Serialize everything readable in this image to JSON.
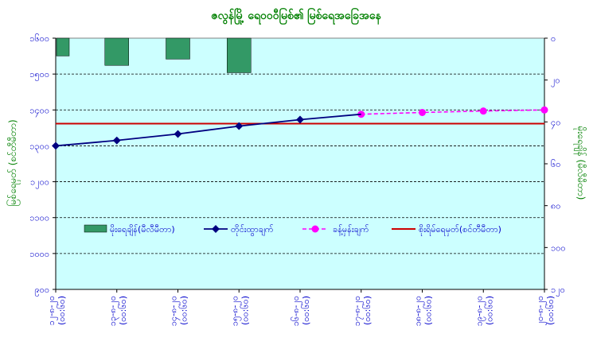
{
  "chart_data": {
    "type": "line",
    "title": "ဇလွန်မြို့ ရေဝ၀ဝီမြစ်၏ မြစ်ရေအခြေအနေ",
    "ylabel_left": "မြစ်ရေမှတ် (စင်တီမီတာ)",
    "ylabel_right": "မိုးရေချိန် (မီလီမီတာ)",
    "colors": {
      "plot_bg": "#ccffff",
      "title": "#008000",
      "axis_text": "#0000cc",
      "rain_fill": "#339966",
      "observed_line": "#000080",
      "forecast_line": "#ff00ff",
      "danger_line": "#cc0000"
    },
    "left_axis": {
      "ylim": [
        900,
        1600
      ],
      "ticks": [
        900,
        1000,
        1100,
        1200,
        1300,
        1400,
        1500,
        1600
      ],
      "tick_labels": [
        "၉၀၀",
        "၁၀၀၀",
        "၁၁၀၀",
        "၁၂၀၀",
        "၁၃၀၀",
        "၁၄၀၀",
        "၁၅၀၀",
        "၁၆၀၀"
      ]
    },
    "right_axis": {
      "ylim": [
        0,
        120
      ],
      "inverted": true,
      "ticks": [
        0,
        20,
        40,
        60,
        80,
        100,
        120
      ],
      "tick_labels": [
        "၀",
        "၂၀",
        "၄၀",
        "၆၀",
        "၈၀",
        "၁၀၀",
        "၁၂၀"
      ]
    },
    "categories": [
      "၁၂-၈-၂၀\n(၀၀:၆၀)",
      "၁၃-၈-၂၀\n(၀၀:၆၀)",
      "၁၄-၈-၂၀\n(၀၀:၆၀)",
      "၁၅-၈-၂၀\n(၀၀:၆၀)",
      "၁၆-၈-၂၀\n(၀၀:၆၀)",
      "၁၇-၈-၂၀\n(၀၀:၆၀)",
      "၁၈-၈-၂၀\n(၀၀:၆၀)",
      "၁၉-၈-၂၀\n(၀၀:၆၀)",
      "၂၀-၈-၂၀\n(၀၀:၆၀)"
    ],
    "series": [
      {
        "name": "မိုးရေချိန်(မီလီမီတာ)",
        "type": "bar",
        "axis": "right",
        "values": [
          8.5,
          13,
          10,
          16.5,
          null,
          null,
          null,
          null,
          null
        ]
      },
      {
        "name": "တိုင်းထွာချက်",
        "type": "line",
        "axis": "left",
        "values": [
          1300,
          1315,
          1333,
          1355,
          1373,
          1388,
          null,
          null,
          null
        ]
      },
      {
        "name": "ခန့်မှန်းချက်",
        "type": "line-dashed",
        "axis": "left",
        "values": [
          null,
          null,
          null,
          null,
          null,
          1388,
          1393,
          1397,
          1400
        ]
      },
      {
        "name": "စိုးရိမ်ရေမှတ်(စင်တီမီတာ)",
        "type": "hline",
        "axis": "left",
        "value": 1362
      }
    ],
    "legend_position": "middle",
    "grid": "horizontal-dashed"
  }
}
